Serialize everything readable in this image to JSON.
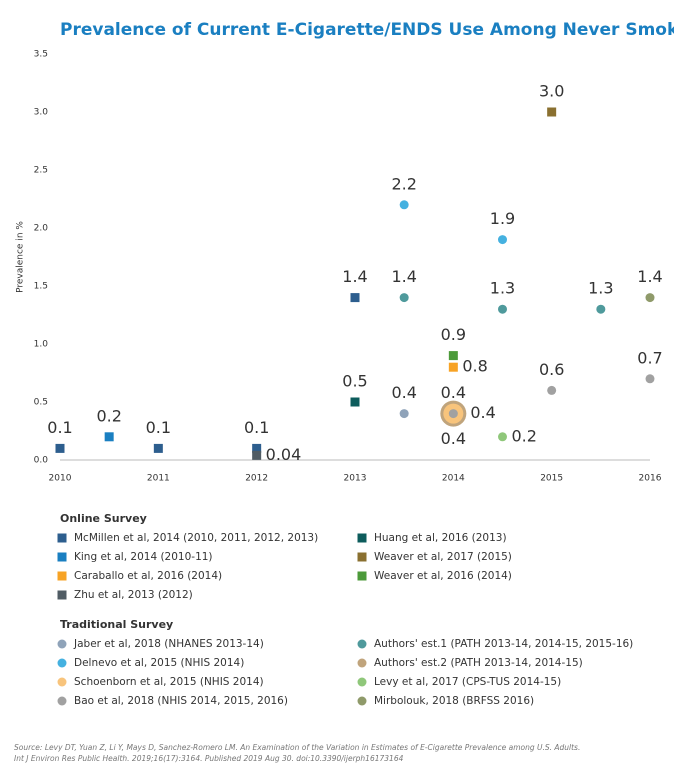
{
  "chart_data": {
    "type": "scatter",
    "title": "Prevalence of Current E-Cigarette/ENDS Use Among Never Smokers",
    "y_label": "Prevalence in %",
    "xlim": [
      2010,
      2016
    ],
    "xticks": [
      2010,
      2011,
      2012,
      2013,
      2014,
      2015,
      2016
    ],
    "ylim": [
      0,
      3.5
    ],
    "yticks": [
      {
        "value": 0,
        "label": "0.0"
      },
      {
        "value": 0.5,
        "label": "0.5"
      },
      {
        "value": 1,
        "label": "1.0"
      },
      {
        "value": 1.5,
        "label": "1.5"
      },
      {
        "value": 2,
        "label": "2.0"
      },
      {
        "value": 2.5,
        "label": "2.5"
      },
      {
        "value": 3,
        "label": "3.0"
      },
      {
        "value": 3.5,
        "label": "3.5"
      }
    ],
    "grid": false,
    "legend_titles": [
      "Online Survey",
      "Traditional Survey"
    ],
    "series": [
      {
        "name": "McMillen et al, 2014 (2010, 2011, 2012, 2013)",
        "marker": "square",
        "color": "#2d5e8e",
        "x": [
          2010,
          2011,
          2012,
          2013
        ],
        "values": [
          0.1,
          0.1,
          0.1,
          1.4
        ],
        "value_labels": [
          "0.1",
          "0.1",
          "0.1",
          "1.4"
        ]
      },
      {
        "name": "King et al, 2014 (2010-11)",
        "marker": "square",
        "color": "#1a7fc1",
        "x": [
          2010.5
        ],
        "values": [
          0.2
        ],
        "value_labels": [
          "0.2"
        ]
      },
      {
        "name": "Caraballo et al, 2016 (2014)",
        "marker": "square",
        "color": "#f7a325",
        "x": [
          2014
        ],
        "values": [
          0.8
        ],
        "value_labels": [
          "0.8"
        ]
      },
      {
        "name": "Zhu et al, 2013 (2012)",
        "marker": "square",
        "color": "#505c64",
        "x": [
          2012
        ],
        "values": [
          0.04
        ],
        "value_labels": [
          "0.04"
        ]
      },
      {
        "name": "Huang et al, 2016 (2013)",
        "marker": "square",
        "color": "#0d5c5c",
        "x": [
          2013
        ],
        "values": [
          0.5
        ],
        "value_labels": [
          "0.5"
        ]
      },
      {
        "name": "Weaver et al, 2017 (2015)",
        "marker": "square",
        "color": "#8a7030",
        "x": [
          2015
        ],
        "values": [
          3.0
        ],
        "value_labels": [
          "3.0"
        ]
      },
      {
        "name": "Weaver et al, 2016 (2014)",
        "marker": "square",
        "color": "#4c9a3a",
        "x": [
          2014
        ],
        "values": [
          0.9
        ],
        "value_labels": [
          "0.9"
        ]
      },
      {
        "name": "Jaber et al, 2018 (NHANES 2013-14)",
        "marker": "circle",
        "color": "#8fa3b9",
        "x": [
          2013.5
        ],
        "values": [
          0.4
        ],
        "value_labels": [
          "0.4"
        ]
      },
      {
        "name": "Delnevo et al, 2015 (NHIS 2014)",
        "marker": "circle",
        "color": "#45b1e0",
        "x": [
          2013.5,
          2014.5
        ],
        "values": [
          2.2,
          1.9
        ],
        "value_labels": [
          "2.2",
          "1.9"
        ]
      },
      {
        "name": "Schoenborn et al, 2015 (NHIS 2014)",
        "marker": "circle",
        "color": "#f8c47c",
        "x": [
          2014
        ],
        "values": [
          0.4
        ],
        "value_labels": [
          "0.4"
        ]
      },
      {
        "name": "Bao et al, 2018 (NHIS 2014, 2015, 2016)",
        "marker": "circle",
        "color": "#a1a1a1",
        "x": [
          2014,
          2015,
          2016
        ],
        "values": [
          0.4,
          0.6,
          0.7
        ],
        "value_labels": [
          "0.4",
          "0.6",
          "0.7"
        ]
      },
      {
        "name": "Authors' est.1 (PATH 2013-14, 2014-15, 2015-16)",
        "marker": "circle",
        "color": "#4f9a9c",
        "x": [
          2013.5,
          2014.5,
          2015.5
        ],
        "values": [
          1.4,
          1.3,
          1.3
        ],
        "value_labels": [
          "1.4",
          "1.3",
          "1.3"
        ]
      },
      {
        "name": "Authors' est.2 (PATH 2013-14, 2014-15)",
        "marker": "circle",
        "color": "#c0a47c",
        "x": [
          2014
        ],
        "values": [
          0.4
        ],
        "value_labels": [
          "0.4"
        ]
      },
      {
        "name": "Levy et al, 2017 (CPS-TUS 2014-15)",
        "marker": "circle",
        "color": "#8fc77a",
        "x": [
          2014.5
        ],
        "values": [
          0.2
        ],
        "value_labels": [
          "0.2"
        ]
      },
      {
        "name": "Mirbolouk, 2018 (BRFSS 2016)",
        "marker": "circle",
        "color": "#8f9a6a",
        "x": [
          2016
        ],
        "values": [
          1.4
        ],
        "value_labels": [
          "1.4"
        ]
      }
    ],
    "source": [
      "Source: Levy DT, Yuan Z, Li Y, Mays D, Sanchez-Romero LM. An Examination of the Variation in Estimates of E-Cigarette Prevalence among U.S. Adults.",
      "Int J Environ Res Public Health. 2019;16(17):3164. Published 2019 Aug 30. doi:10.3390/ijerph16173164"
    ]
  }
}
